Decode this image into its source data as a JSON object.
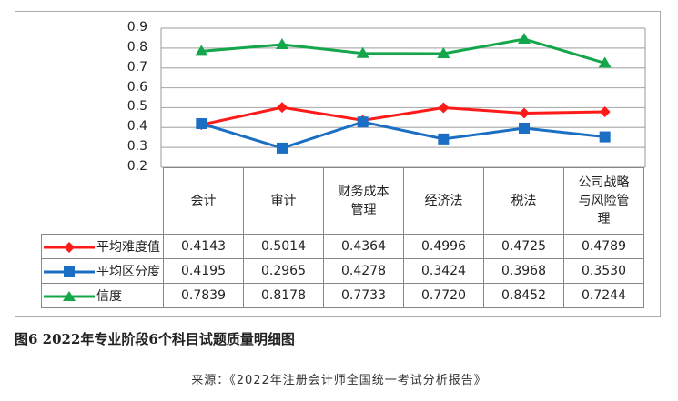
{
  "chart_data": {
    "type": "line",
    "categories": [
      "会计",
      "审计",
      "财务成本管理",
      "经济法",
      "税法",
      "公司战略与风险管理"
    ],
    "category_lines": [
      [
        "会计"
      ],
      [
        "审计"
      ],
      [
        "财务成本",
        "管理"
      ],
      [
        "经济法"
      ],
      [
        "税法"
      ],
      [
        "公司战略",
        "与风险管",
        "理"
      ]
    ],
    "series": [
      {
        "name": "平均难度值",
        "color": "#ff1a1a",
        "marker": "diamond",
        "values": [
          0.4143,
          0.5014,
          0.4364,
          0.4996,
          0.4725,
          0.4789
        ],
        "labels": [
          "0.4143",
          "0.5014",
          "0.4364",
          "0.4996",
          "0.4725",
          "0.4789"
        ]
      },
      {
        "name": "平均区分度",
        "color": "#1a6fc4",
        "marker": "square",
        "values": [
          0.4195,
          0.2965,
          0.4278,
          0.3424,
          0.3968,
          0.353
        ],
        "labels": [
          "0.4195",
          "0.2965",
          "0.4278",
          "0.3424",
          "0.3968",
          "0.3530"
        ]
      },
      {
        "name": "信度",
        "color": "#14a64a",
        "marker": "triangle",
        "values": [
          0.7839,
          0.8178,
          0.7733,
          0.772,
          0.8452,
          0.7244
        ],
        "labels": [
          "0.7839",
          "0.8178",
          "0.7733",
          "0.7720",
          "0.8452",
          "0.7244"
        ]
      }
    ],
    "ylim": [
      0.2,
      0.9
    ],
    "yticks": [
      "0.9",
      "0.8",
      "0.7",
      "0.6",
      "0.5",
      "0.4",
      "0.3",
      "0.2"
    ],
    "grid": true,
    "legend": "table-left"
  },
  "caption": "图6  2022年专业阶段6个科目试题质量明细图",
  "source": "来源：《2022年注册会计师全国统一考试分析报告》"
}
